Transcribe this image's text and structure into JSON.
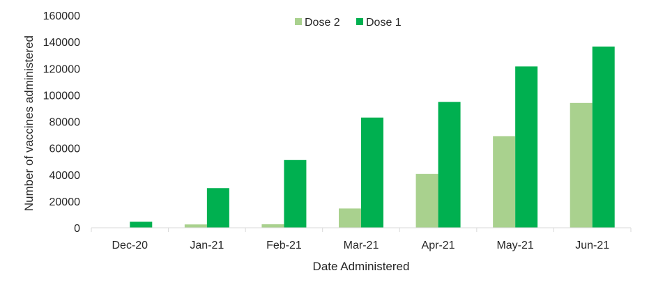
{
  "chart_data": {
    "type": "bar",
    "title": "",
    "xlabel": "Date Administered",
    "ylabel": "Number of vaccines administered",
    "categories": [
      "Dec-20",
      "Jan-21",
      "Feb-21",
      "Mar-21",
      "Apr-21",
      "May-21",
      "Jun-21"
    ],
    "series": [
      {
        "name": "Dose 2",
        "color": "#a9d18e",
        "values": [
          0,
          2500,
          2600,
          14500,
          40500,
          69000,
          94000
        ]
      },
      {
        "name": "Dose 1",
        "color": "#00b050",
        "values": [
          4500,
          29800,
          51000,
          83000,
          94800,
          121500,
          136500
        ]
      }
    ],
    "ylim": [
      0,
      160000
    ],
    "yticks": [
      0,
      20000,
      40000,
      60000,
      80000,
      100000,
      120000,
      140000,
      160000
    ],
    "grid": false,
    "legend": "top-center"
  }
}
